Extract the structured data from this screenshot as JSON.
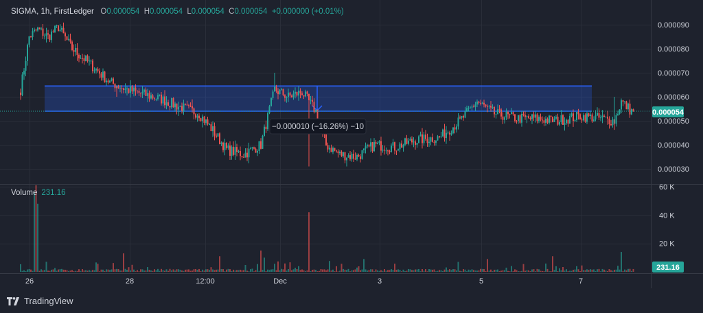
{
  "legend": {
    "symbol": "SIGMA",
    "interval": "1h",
    "exchange": "FirstLedger",
    "open_label": "O",
    "open": "0.000054",
    "high_label": "H",
    "high": "0.000054",
    "low_label": "L",
    "low": "0.000054",
    "close_label": "C",
    "close": "0.000054",
    "change": "+0.000000 (+0.01%)"
  },
  "volume_legend": {
    "label": "Volume",
    "value": "231.16"
  },
  "measure_label": "−0.000010 (−16.26%) −10",
  "price_badge": "0.000054",
  "volume_badge": "231.16",
  "branding": "TradingView",
  "colors": {
    "bg": "#1e222d",
    "up": "#26a69a",
    "down": "#ef5350",
    "box": "#2962ff",
    "text": "#d1d4dc",
    "grid": "#2a2e39"
  },
  "chart_data": [
    {
      "type": "candlestick",
      "y_ticks": [
        "0.000090",
        "0.000080",
        "0.000070",
        "0.000060",
        "0.000050",
        "0.000040",
        "0.000030"
      ],
      "ylim": [
        2.4e-05,
        9.25e-05
      ],
      "x_ticks": [
        "26",
        "28",
        "12:00",
        "Dec",
        "3",
        "5",
        "7"
      ],
      "last_price": 5.4e-05,
      "anchors": [
        {
          "i": 0,
          "v": 6.3e-05
        },
        {
          "i": 5,
          "v": 8.5e-05
        },
        {
          "i": 10,
          "v": 8.8e-05
        },
        {
          "i": 16,
          "v": 8.5e-05
        },
        {
          "i": 22,
          "v": 8.9e-05
        },
        {
          "i": 30,
          "v": 8e-05
        },
        {
          "i": 40,
          "v": 7.4e-05
        },
        {
          "i": 52,
          "v": 6.6e-05
        },
        {
          "i": 62,
          "v": 6.3e-05
        },
        {
          "i": 72,
          "v": 6.1e-05
        },
        {
          "i": 82,
          "v": 5.9e-05
        },
        {
          "i": 92,
          "v": 5.6e-05
        },
        {
          "i": 104,
          "v": 5.3e-05
        },
        {
          "i": 112,
          "v": 4.6e-05
        },
        {
          "i": 120,
          "v": 3.8e-05
        },
        {
          "i": 130,
          "v": 3.6e-05
        },
        {
          "i": 140,
          "v": 4e-05
        },
        {
          "i": 148,
          "v": 6.3e-05
        },
        {
          "i": 156,
          "v": 6e-05
        },
        {
          "i": 164,
          "v": 6.2e-05
        },
        {
          "i": 172,
          "v": 5.4e-05
        },
        {
          "i": 178,
          "v": 4e-05
        },
        {
          "i": 186,
          "v": 3.6e-05
        },
        {
          "i": 196,
          "v": 3.5e-05
        },
        {
          "i": 206,
          "v": 4e-05
        },
        {
          "i": 218,
          "v": 3.9e-05
        },
        {
          "i": 230,
          "v": 4.2e-05
        },
        {
          "i": 244,
          "v": 4.3e-05
        },
        {
          "i": 256,
          "v": 5e-05
        },
        {
          "i": 266,
          "v": 5.8e-05
        },
        {
          "i": 276,
          "v": 5.3e-05
        },
        {
          "i": 290,
          "v": 5.1e-05
        },
        {
          "i": 300,
          "v": 5.1e-05
        },
        {
          "i": 312,
          "v": 5e-05
        },
        {
          "i": 326,
          "v": 5.2e-05
        },
        {
          "i": 338,
          "v": 5.1e-05
        },
        {
          "i": 346,
          "v": 5e-05
        },
        {
          "i": 350,
          "v": 5.8e-05
        },
        {
          "i": 356,
          "v": 5.4e-05
        }
      ],
      "measure_box": {
        "top": 6.45e-05,
        "bottom": 5.4e-05,
        "change": -1e-05,
        "change_pct": -16.26
      }
    },
    {
      "type": "bar",
      "name": "Volume",
      "y_ticks": [
        "60 K",
        "40 K",
        "20 K"
      ],
      "ylim": [
        0,
        60000
      ],
      "spikes": [
        {
          "i": 8,
          "v": 56000
        },
        {
          "i": 9,
          "v": 61000
        },
        {
          "i": 10,
          "v": 48000
        },
        {
          "i": 60,
          "v": 13000
        },
        {
          "i": 116,
          "v": 11000
        },
        {
          "i": 140,
          "v": 15000
        },
        {
          "i": 142,
          "v": 10000
        },
        {
          "i": 168,
          "v": 42000
        },
        {
          "i": 200,
          "v": 9000
        },
        {
          "i": 255,
          "v": 7000
        },
        {
          "i": 272,
          "v": 9000
        },
        {
          "i": 310,
          "v": 11000
        },
        {
          "i": 350,
          "v": 14000
        }
      ]
    }
  ]
}
